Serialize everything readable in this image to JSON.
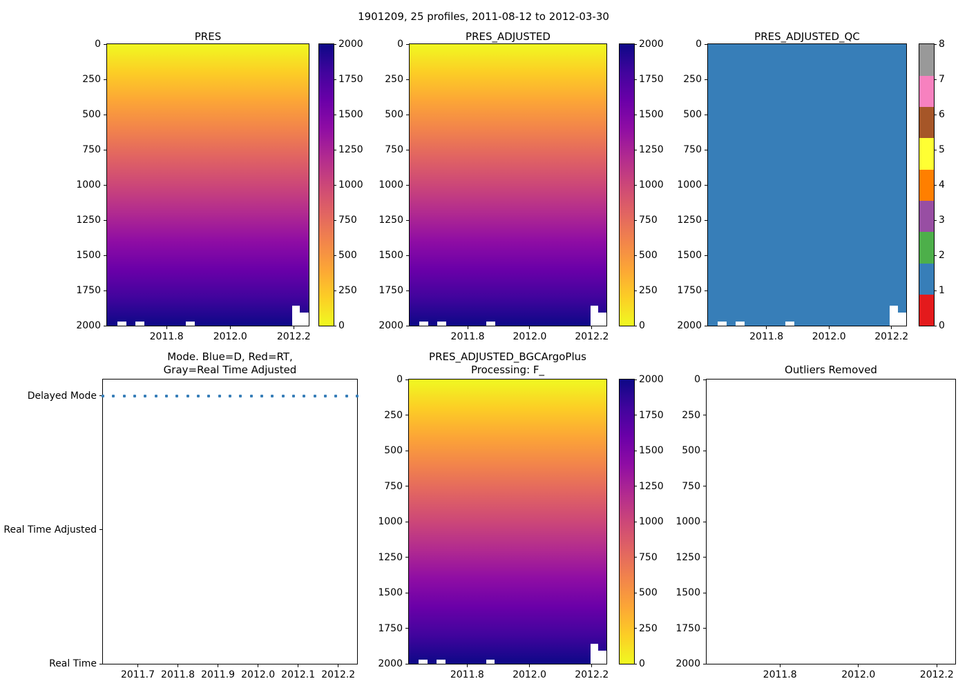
{
  "figure": {
    "suptitle": "1901209, 25 profiles, 2011-08-12 to 2012-03-30",
    "platform_id": "1901209",
    "n_profiles": 25,
    "date_start": "2011-08-12",
    "date_end": "2012-03-30"
  },
  "colors": {
    "plasma_reversed_top_to_bottom": [
      "#f0f921",
      "#fcce25",
      "#fca636",
      "#f2844b",
      "#e16462",
      "#cc4778",
      "#b12a90",
      "#8f0da4",
      "#6a00a8",
      "#41049d",
      "#0d0887"
    ],
    "qc_palette_0_to_8": [
      "#e41a1c",
      "#377eb8",
      "#4daf4a",
      "#984ea3",
      "#ff7f00",
      "#ffff33",
      "#a65628",
      "#f781bf",
      "#999999"
    ],
    "qc_fill": "#377eb8",
    "mode_dot_color": "#377eb8",
    "spine_color": "#000000",
    "background": "#ffffff"
  },
  "chart_data": [
    {
      "id": "pres",
      "type": "heatmap",
      "title": "PRES",
      "x_range": [
        2011.613,
        2012.247
      ],
      "y_range": [
        0,
        2000
      ],
      "y_axis_inverted": true,
      "x_tick_labels": [
        "2011.8",
        "2012.0",
        "2012.2"
      ],
      "y_tick_labels": [
        "0",
        "250",
        "500",
        "750",
        "1000",
        "1250",
        "1500",
        "1750",
        "2000"
      ],
      "colormap": "plasma_r",
      "fill_rule": "color encodes pressure value, equal to depth: 0 dbar (yellow) at top to 2000 dbar (dark blue) at bottom",
      "n_profiles": 25,
      "colorbar": {
        "range": [
          0,
          2000
        ],
        "tick_labels_top_to_bottom": [
          "2000",
          "1750",
          "1500",
          "1250",
          "1000",
          "750",
          "500",
          "250",
          "0"
        ]
      },
      "missing_regions": [
        {
          "x_frac_start": 0.05,
          "x_frac_end": 0.095,
          "depth_from": 1970,
          "depth_to": 2000
        },
        {
          "x_frac_start": 0.14,
          "x_frac_end": 0.185,
          "depth_from": 1970,
          "depth_to": 2000
        },
        {
          "x_frac_start": 0.39,
          "x_frac_end": 0.435,
          "depth_from": 1970,
          "depth_to": 2000
        },
        {
          "x_frac_start": 0.918,
          "x_frac_end": 0.957,
          "depth_from": 1858,
          "depth_to": 2000
        },
        {
          "x_frac_start": 0.957,
          "x_frac_end": 1.0,
          "depth_from": 1908,
          "depth_to": 2000
        }
      ]
    },
    {
      "id": "adjusted",
      "type": "heatmap",
      "title": "PRES_ADJUSTED",
      "x_range": [
        2011.613,
        2012.247
      ],
      "y_range": [
        0,
        2000
      ],
      "y_axis_inverted": true,
      "x_tick_labels": [
        "2011.8",
        "2012.0",
        "2012.2"
      ],
      "y_tick_labels": [
        "0",
        "250",
        "500",
        "750",
        "1000",
        "1250",
        "1500",
        "1750",
        "2000"
      ],
      "colormap": "plasma_r",
      "fill_rule": "color encodes adjusted pressure value, equal to depth: 0 dbar (yellow) at top to 2000 dbar (dark blue) at bottom",
      "n_profiles": 25,
      "colorbar": {
        "range": [
          0,
          2000
        ],
        "tick_labels_top_to_bottom": [
          "2000",
          "1750",
          "1500",
          "1250",
          "1000",
          "750",
          "500",
          "250",
          "0"
        ]
      },
      "missing_regions": [
        {
          "x_frac_start": 0.05,
          "x_frac_end": 0.095,
          "depth_from": 1970,
          "depth_to": 2000
        },
        {
          "x_frac_start": 0.14,
          "x_frac_end": 0.185,
          "depth_from": 1970,
          "depth_to": 2000
        },
        {
          "x_frac_start": 0.39,
          "x_frac_end": 0.435,
          "depth_from": 1970,
          "depth_to": 2000
        },
        {
          "x_frac_start": 0.918,
          "x_frac_end": 0.957,
          "depth_from": 1858,
          "depth_to": 2000
        },
        {
          "x_frac_start": 0.957,
          "x_frac_end": 1.0,
          "depth_from": 1908,
          "depth_to": 2000
        }
      ]
    },
    {
      "id": "qc",
      "type": "heatmap",
      "title": "PRES_ADJUSTED_QC",
      "x_range": [
        2011.613,
        2012.247
      ],
      "y_range": [
        0,
        2000
      ],
      "y_axis_inverted": true,
      "x_tick_labels": [
        "2011.8",
        "2012.0",
        "2012.2"
      ],
      "y_tick_labels": [
        "0",
        "250",
        "500",
        "750",
        "1000",
        "1250",
        "1500",
        "1750",
        "2000"
      ],
      "colormap": "discrete QC flags 0-8 (Set1)",
      "fill_rule": "uniform QC flag value 1 (blue) everywhere data exists",
      "uniform_value": 1,
      "n_profiles": 25,
      "colorbar": {
        "range": [
          0,
          8
        ],
        "discrete": true,
        "tick_labels_top_to_bottom": [
          "8",
          "7",
          "6",
          "5",
          "4",
          "3",
          "2",
          "1",
          "0"
        ]
      },
      "missing_regions": [
        {
          "x_frac_start": 0.05,
          "x_frac_end": 0.095,
          "depth_from": 1970,
          "depth_to": 2000
        },
        {
          "x_frac_start": 0.14,
          "x_frac_end": 0.185,
          "depth_from": 1970,
          "depth_to": 2000
        },
        {
          "x_frac_start": 0.39,
          "x_frac_end": 0.435,
          "depth_from": 1970,
          "depth_to": 2000
        },
        {
          "x_frac_start": 0.918,
          "x_frac_end": 0.957,
          "depth_from": 1858,
          "depth_to": 2000
        },
        {
          "x_frac_start": 0.957,
          "x_frac_end": 1.0,
          "depth_from": 1908,
          "depth_to": 2000
        }
      ]
    },
    {
      "id": "mode",
      "type": "scatter",
      "title_lines": [
        "Mode. Blue=D, Red=RT,",
        "Gray=Real Time Adjusted"
      ],
      "x_range": [
        2011.613,
        2012.247
      ],
      "x_tick_labels": [
        "2011.7",
        "2011.8",
        "2011.9",
        "2012.0",
        "2012.1",
        "2012.2"
      ],
      "y_categories_top_to_bottom": [
        "Delayed Mode",
        "Real Time Adjusted",
        "Real Time"
      ],
      "points": {
        "count": 25,
        "category": "Delayed Mode",
        "color": "#377eb8",
        "note": "all 25 profiles are Delayed Mode, evenly spaced in time"
      }
    },
    {
      "id": "bgc",
      "type": "heatmap",
      "title_lines": [
        "PRES_ADJUSTED_BGCArgoPlus",
        "Processing: F_"
      ],
      "x_range": [
        2011.613,
        2012.247
      ],
      "y_range": [
        0,
        2000
      ],
      "y_axis_inverted": true,
      "x_tick_labels": [
        "2011.8",
        "2012.0",
        "2012.2"
      ],
      "y_tick_labels": [
        "0",
        "250",
        "500",
        "750",
        "1000",
        "1250",
        "1500",
        "1750",
        "2000"
      ],
      "colormap": "plasma_r",
      "fill_rule": "color encodes adjusted pressure value, equal to depth: 0 dbar (yellow) at top to 2000 dbar (dark blue) at bottom",
      "n_profiles": 25,
      "colorbar": {
        "range": [
          0,
          2000
        ],
        "tick_labels_top_to_bottom": [
          "2000",
          "1750",
          "1500",
          "1250",
          "1000",
          "750",
          "500",
          "250",
          "0"
        ]
      },
      "missing_regions": [
        {
          "x_frac_start": 0.05,
          "x_frac_end": 0.095,
          "depth_from": 1970,
          "depth_to": 2000
        },
        {
          "x_frac_start": 0.14,
          "x_frac_end": 0.185,
          "depth_from": 1970,
          "depth_to": 2000
        },
        {
          "x_frac_start": 0.39,
          "x_frac_end": 0.435,
          "depth_from": 1970,
          "depth_to": 2000
        },
        {
          "x_frac_start": 0.918,
          "x_frac_end": 0.957,
          "depth_from": 1858,
          "depth_to": 2000
        },
        {
          "x_frac_start": 0.957,
          "x_frac_end": 1.0,
          "depth_from": 1908,
          "depth_to": 2000
        }
      ]
    },
    {
      "id": "outliers",
      "type": "empty",
      "title": "Outliers Removed",
      "x_range": [
        2011.613,
        2012.247
      ],
      "y_range": [
        0,
        2000
      ],
      "y_axis_inverted": true,
      "x_tick_labels": [
        "2011.8",
        "2012.0",
        "2012.2"
      ],
      "y_tick_labels": [
        "0",
        "250",
        "500",
        "750",
        "1000",
        "1250",
        "1500",
        "1750",
        "2000"
      ],
      "fill_rule": "no outliers plotted; axes empty"
    }
  ]
}
